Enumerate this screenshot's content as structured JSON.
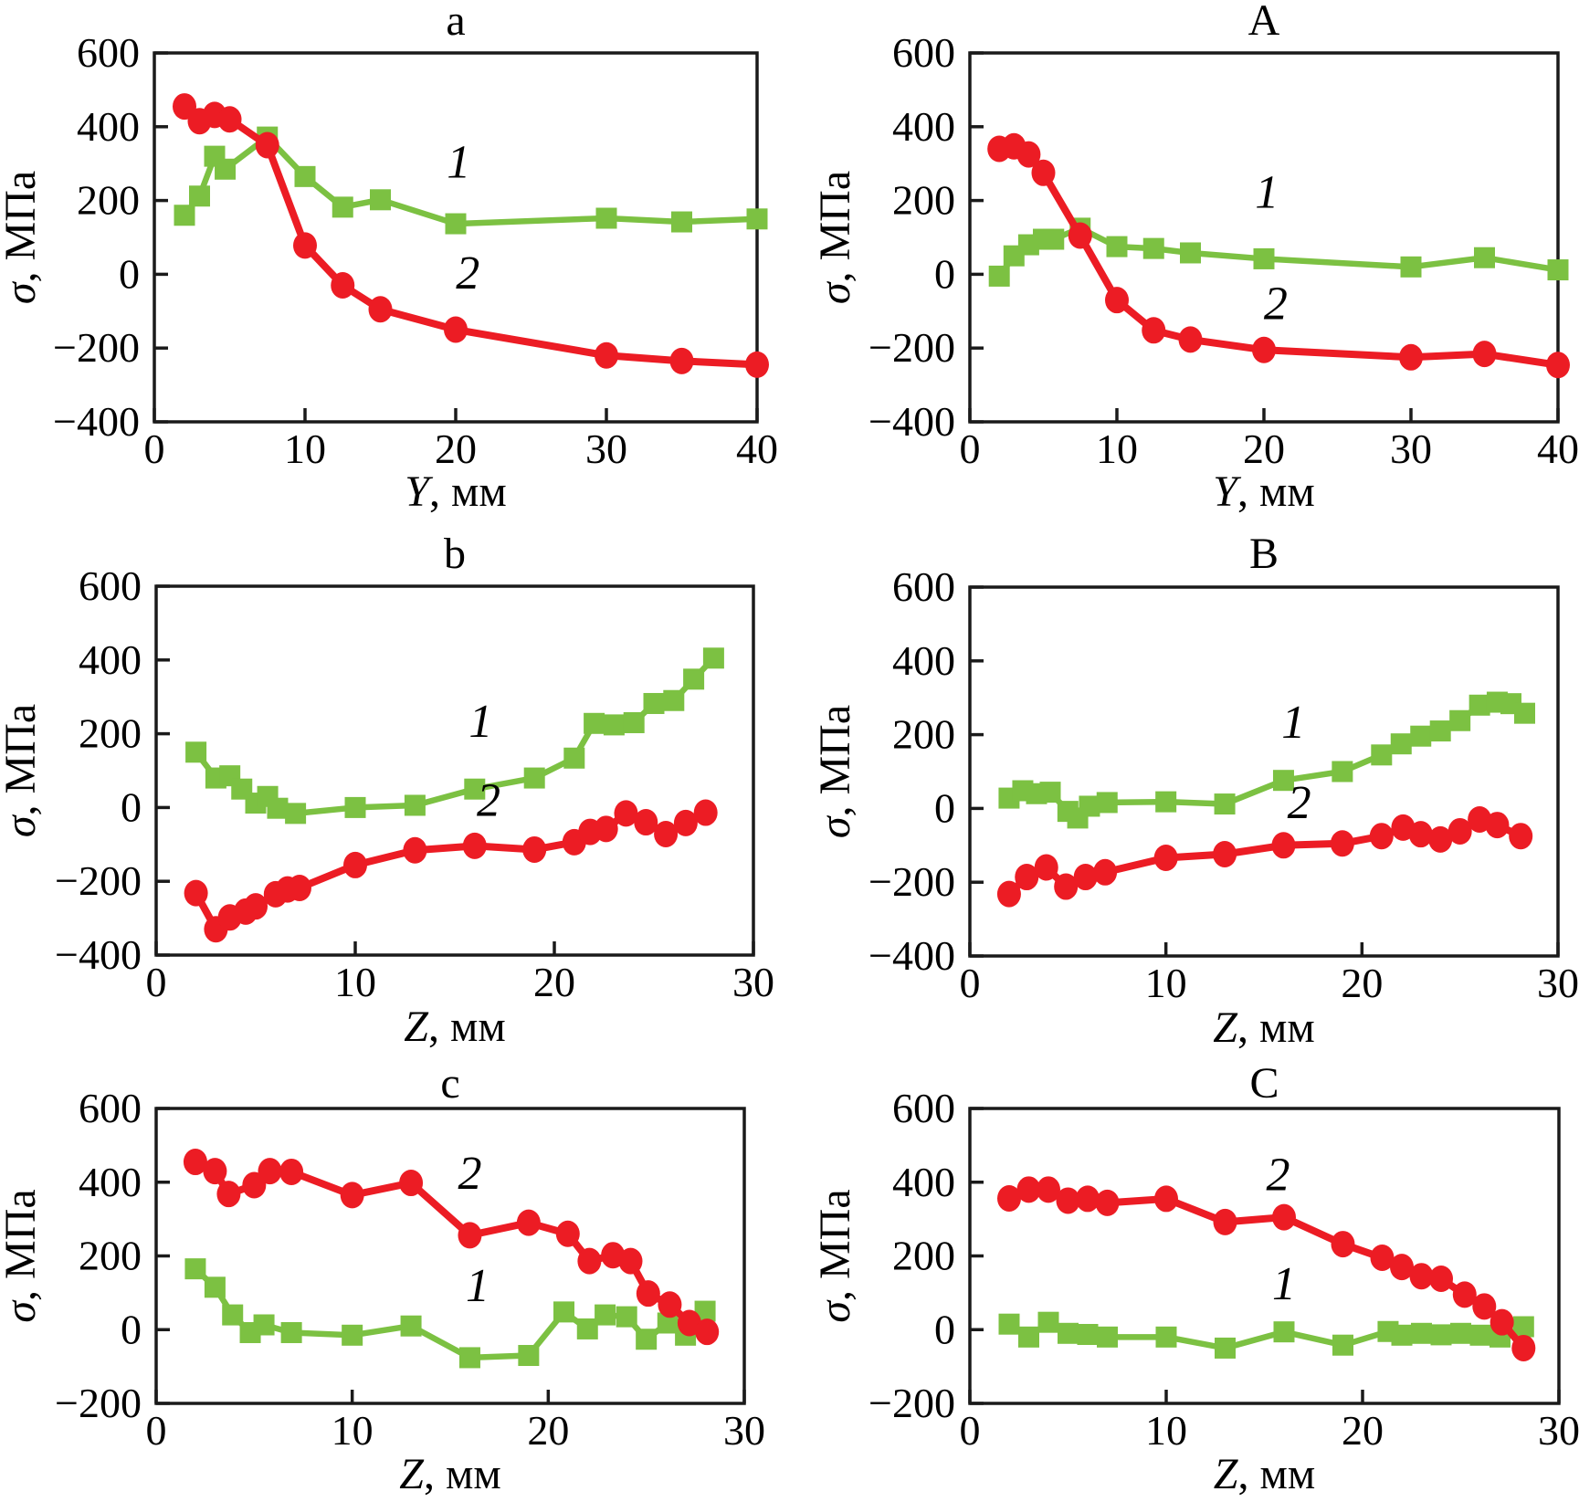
{
  "figure": {
    "background": "#ffffff",
    "axis_color": "#1a1a1a",
    "series_style": {
      "1": {
        "marker": "square",
        "color": "#7cc142"
      },
      "2": {
        "marker": "circle",
        "color": "#ec1c24"
      }
    }
  },
  "chart_data": [
    {
      "id": "a",
      "type": "line",
      "title": "a",
      "xlabel_var": "Y",
      "xlabel_rest": ", мм",
      "ylabel_var": "σ",
      "ylabel_rest": ", МПа",
      "xlim": [
        0,
        40
      ],
      "ylim": [
        -400,
        600
      ],
      "xticks": [
        0,
        10,
        20,
        30,
        40
      ],
      "yticks": [
        600,
        400,
        200,
        0,
        -200,
        -400
      ],
      "grid": false,
      "legend_position": "inline",
      "series": [
        {
          "name": "1",
          "marker": "square",
          "color": "#7cc142",
          "label_pos": [
            20.2,
            262
          ],
          "x": [
            2,
            3,
            4,
            4.7,
            7.5,
            10,
            12.5,
            15,
            20,
            30,
            35,
            40
          ],
          "y": [
            160,
            212,
            320,
            285,
            372,
            265,
            182,
            202,
            137,
            152,
            142,
            150
          ]
        },
        {
          "name": "2",
          "marker": "circle",
          "color": "#ec1c24",
          "label_pos": [
            20.8,
            -38
          ],
          "x": [
            2,
            3,
            4,
            5,
            7.5,
            10,
            12.5,
            15,
            20,
            30,
            35,
            40
          ],
          "y": [
            455,
            415,
            432,
            420,
            350,
            78,
            -30,
            -95,
            -150,
            -220,
            -235,
            -245
          ]
        }
      ]
    },
    {
      "id": "A",
      "type": "line",
      "title": "A",
      "xlabel_var": "Y",
      "xlabel_rest": ", мм",
      "ylabel_var": "σ",
      "ylabel_rest": ", МПа",
      "xlim": [
        0,
        40
      ],
      "ylim": [
        -400,
        600
      ],
      "xticks": [
        0,
        10,
        20,
        30,
        40
      ],
      "yticks": [
        600,
        400,
        200,
        0,
        -200,
        -400
      ],
      "grid": false,
      "legend_position": "inline",
      "series": [
        {
          "name": "1",
          "marker": "square",
          "color": "#7cc142",
          "label_pos": [
            20.2,
            180
          ],
          "x": [
            2,
            3,
            4,
            5,
            5.7,
            7.5,
            10,
            12.5,
            15,
            20,
            30,
            35,
            40
          ],
          "y": [
            -5,
            50,
            80,
            95,
            95,
            125,
            75,
            70,
            58,
            42,
            20,
            45,
            12
          ]
        },
        {
          "name": "2",
          "marker": "circle",
          "color": "#ec1c24",
          "label_pos": [
            20.8,
            -122
          ],
          "x": [
            2,
            3,
            4,
            5,
            7.5,
            10,
            12.5,
            15,
            20,
            30,
            35,
            40
          ],
          "y": [
            340,
            347,
            325,
            275,
            105,
            -70,
            -152,
            -177,
            -205,
            -225,
            -216,
            -246
          ]
        }
      ]
    },
    {
      "id": "b",
      "type": "line",
      "title": "b",
      "xlabel_var": "Z",
      "xlabel_rest": ", мм",
      "ylabel_var": "σ",
      "ylabel_rest": ", МПа",
      "xlim": [
        0,
        30
      ],
      "ylim": [
        -400,
        600
      ],
      "xticks": [
        0,
        10,
        20,
        30
      ],
      "yticks": [
        600,
        400,
        200,
        0,
        -200,
        -400
      ],
      "grid": false,
      "legend_position": "inline",
      "series": [
        {
          "name": "1",
          "marker": "square",
          "color": "#7cc142",
          "label_pos": [
            16.3,
            192
          ],
          "x": [
            2,
            3,
            3.7,
            4.3,
            5,
            5.6,
            6.1,
            7,
            10,
            13,
            16,
            19,
            21,
            22,
            23,
            24,
            25,
            26,
            27,
            28
          ],
          "y": [
            150,
            80,
            86,
            50,
            12,
            30,
            -2,
            -16,
            0,
            6,
            50,
            80,
            134,
            228,
            224,
            230,
            282,
            290,
            348,
            405
          ]
        },
        {
          "name": "2",
          "marker": "circle",
          "color": "#ec1c24",
          "label_pos": [
            16.7,
            -22
          ],
          "x": [
            2,
            3,
            3.7,
            4.5,
            5,
            6,
            6.6,
            7.2,
            10,
            13,
            16,
            19,
            21,
            21.8,
            22.6,
            23.6,
            24.6,
            25.6,
            26.6,
            27.6
          ],
          "y": [
            -232,
            -330,
            -298,
            -282,
            -268,
            -235,
            -222,
            -218,
            -156,
            -116,
            -104,
            -114,
            -94,
            -66,
            -58,
            -16,
            -40,
            -72,
            -42,
            -14
          ]
        }
      ]
    },
    {
      "id": "B",
      "type": "line",
      "title": "B",
      "xlabel_var": "Z",
      "xlabel_rest": ", мм",
      "ylabel_var": "σ",
      "ylabel_rest": ", МПа",
      "xlim": [
        0,
        30
      ],
      "ylim": [
        -400,
        600
      ],
      "xticks": [
        0,
        10,
        20,
        30
      ],
      "yticks": [
        600,
        400,
        200,
        0,
        -200,
        -400
      ],
      "grid": false,
      "legend_position": "inline",
      "series": [
        {
          "name": "1",
          "marker": "square",
          "color": "#7cc142",
          "label_pos": [
            16.5,
            192
          ],
          "x": [
            2,
            2.7,
            3.4,
            4.1,
            5,
            5.5,
            6.1,
            7,
            10,
            13,
            16,
            19,
            21,
            22,
            23,
            24,
            25,
            26,
            26.9,
            27.6,
            28.3
          ],
          "y": [
            28,
            48,
            40,
            44,
            -8,
            -26,
            6,
            16,
            18,
            12,
            76,
            100,
            145,
            175,
            196,
            210,
            238,
            280,
            288,
            284,
            258
          ]
        },
        {
          "name": "2",
          "marker": "circle",
          "color": "#ec1c24",
          "label_pos": [
            16.8,
            -26
          ],
          "x": [
            2,
            2.9,
            3.9,
            4.9,
            5.9,
            6.9,
            10,
            13,
            16,
            19,
            21,
            22.1,
            23,
            24,
            25,
            26,
            26.9,
            28.1
          ],
          "y": [
            -232,
            -186,
            -160,
            -212,
            -186,
            -173,
            -134,
            -124,
            -100,
            -95,
            -75,
            -52,
            -70,
            -84,
            -62,
            -30,
            -45,
            -75
          ]
        }
      ]
    },
    {
      "id": "c",
      "type": "line",
      "title": "c",
      "xlabel_var": "Z",
      "xlabel_rest": ", мм",
      "ylabel_var": "σ",
      "ylabel_rest": ", МПа",
      "xlim": [
        0,
        30
      ],
      "ylim": [
        -200,
        600
      ],
      "xticks": [
        0,
        10,
        20,
        30
      ],
      "yticks": [
        600,
        400,
        200,
        0,
        -200
      ],
      "grid": false,
      "legend_position": "inline",
      "series": [
        {
          "name": "1",
          "marker": "square",
          "color": "#7cc142",
          "label_pos": [
            16.4,
            78
          ],
          "x": [
            2,
            3,
            3.9,
            4.8,
            5.5,
            6.9,
            10,
            13,
            16,
            19,
            20.8,
            22,
            22.9,
            24,
            25,
            26.1,
            27,
            28
          ],
          "y": [
            165,
            115,
            40,
            -8,
            13,
            -8,
            -15,
            10,
            -76,
            -70,
            48,
            2,
            40,
            35,
            -26,
            18,
            -15,
            50
          ]
        },
        {
          "name": "2",
          "marker": "circle",
          "color": "#ec1c24",
          "label_pos": [
            16.0,
            382
          ],
          "x": [
            2,
            3,
            3.7,
            5,
            5.8,
            6.9,
            10,
            13,
            16,
            19,
            21,
            22.1,
            23.3,
            24.2,
            25.1,
            26.2,
            27.2,
            28.1
          ],
          "y": [
            455,
            430,
            368,
            392,
            430,
            428,
            365,
            398,
            256,
            290,
            260,
            186,
            202,
            186,
            98,
            68,
            18,
            -6
          ]
        }
      ]
    },
    {
      "id": "C",
      "type": "line",
      "title": "C",
      "xlabel_var": "Z",
      "xlabel_rest": ", мм",
      "ylabel_var": "σ",
      "ylabel_rest": ", МПа",
      "xlim": [
        0,
        30
      ],
      "ylim": [
        -200,
        600
      ],
      "xticks": [
        0,
        10,
        20,
        30
      ],
      "yticks": [
        600,
        400,
        200,
        0,
        -200
      ],
      "grid": false,
      "legend_position": "inline",
      "series": [
        {
          "name": "1",
          "marker": "square",
          "color": "#7cc142",
          "label_pos": [
            16.0,
            82
          ],
          "x": [
            2,
            3,
            4,
            5,
            6,
            7,
            10,
            13,
            16,
            19,
            21.3,
            22,
            23,
            24,
            25,
            26,
            27,
            28.2
          ],
          "y": [
            15,
            -20,
            20,
            -10,
            -13,
            -20,
            -20,
            -50,
            -6,
            -42,
            -5,
            -15,
            -10,
            -14,
            -10,
            -15,
            -20,
            8
          ]
        },
        {
          "name": "2",
          "marker": "circle",
          "color": "#ec1c24",
          "label_pos": [
            15.7,
            378
          ],
          "x": [
            2,
            3,
            4,
            5,
            6,
            7,
            10,
            13,
            16,
            19,
            21,
            22,
            23,
            24,
            25.2,
            26.2,
            27.1,
            28.2
          ],
          "y": [
            356,
            380,
            380,
            350,
            355,
            344,
            355,
            292,
            305,
            232,
            195,
            170,
            145,
            138,
            95,
            63,
            20,
            -50
          ]
        }
      ]
    }
  ]
}
